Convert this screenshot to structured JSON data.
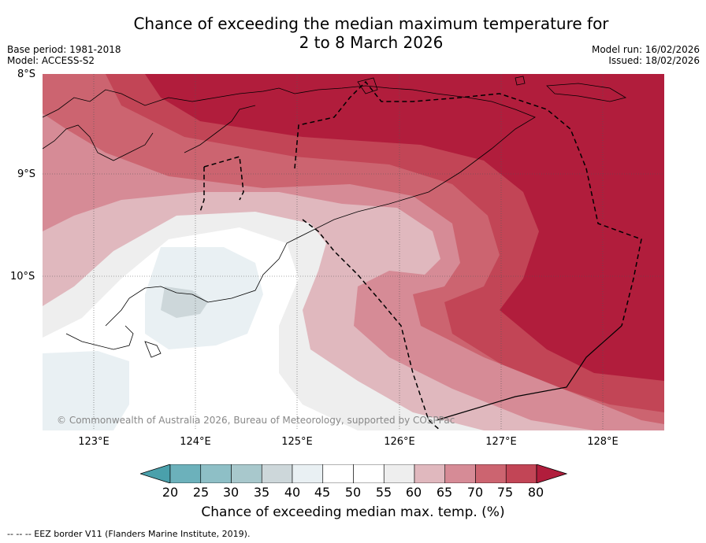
{
  "title_line1": "Chance of exceeding the median maximum temperature for",
  "title_line2": "2 to 8 March 2026",
  "base_period": "Base period: 1981-2018",
  "model": "Model: ACCESS-S2",
  "model_run": "Model run: 16/02/2026",
  "issued": "Issued: 18/02/2026",
  "lat_labels": [
    "8°S",
    "9°S",
    "10°S"
  ],
  "lon_labels": [
    "123°E",
    "124°E",
    "125°E",
    "126°E",
    "127°E",
    "128°E"
  ],
  "copyright": "© Commonwealth of Australia 2026, Bureau of Meteorology, supported by COSPPac",
  "colorbar": {
    "ticks": [
      "20",
      "25",
      "30",
      "35",
      "40",
      "45",
      "50",
      "55",
      "60",
      "65",
      "70",
      "75",
      "80"
    ],
    "label": "Chance of exceeding median max. temp. (%)",
    "colors": [
      "#4aa0ab",
      "#6cb1bb",
      "#8ebfc6",
      "#a8c8cc",
      "#cdd7da",
      "#e9f0f3",
      "#ffffff",
      "#ffffff",
      "#eeeeee",
      "#e0b8be",
      "#d68b96",
      "#cc6470",
      "#c24556",
      "#b11d3c"
    ]
  },
  "footnote": "--  --  -- EEZ border V11 (Flanders Marine Institute, 2019)."
}
